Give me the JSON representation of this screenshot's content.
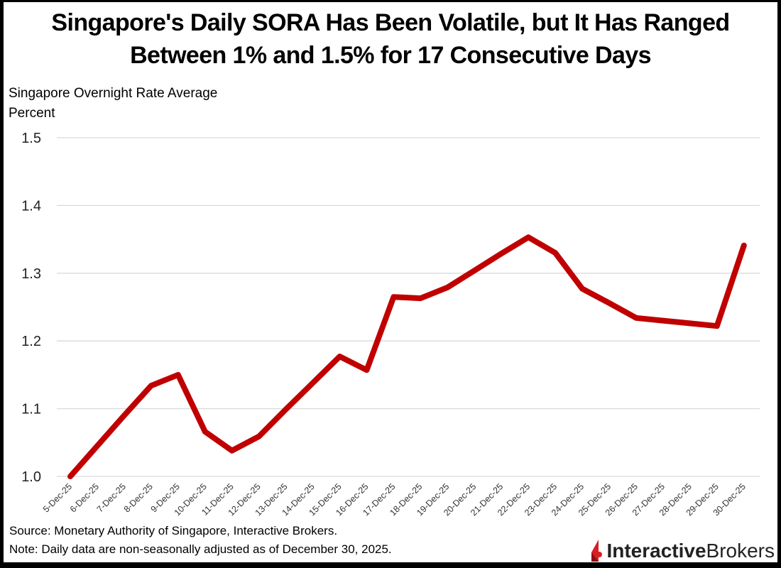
{
  "chart_data": {
    "type": "line",
    "title": "Singapore's Daily SORA Has Been Volatile, but It Has Ranged Between 1% and 1.5% for 17 Consecutive Days",
    "title_lines": [
      "Singapore's Daily SORA Has Been Volatile, but It Has Ranged",
      "Between 1% and 1.5% for 17 Consecutive Days"
    ],
    "ylabel_lines": [
      "Singapore Overnight Rate Average",
      "Percent"
    ],
    "xlabel": "",
    "ylim": [
      1.0,
      1.5
    ],
    "yticks": [
      1.0,
      1.1,
      1.2,
      1.3,
      1.4,
      1.5
    ],
    "ytick_labels": [
      "1.0",
      "1.1",
      "1.2",
      "1.3",
      "1.4",
      "1.5"
    ],
    "grid": true,
    "legend": "none",
    "categories": [
      "5-Dec-25",
      "6-Dec-25",
      "7-Dec-25",
      "8-Dec-25",
      "9-Dec-25",
      "10-Dec-25",
      "11-Dec-25",
      "12-Dec-25",
      "13-Dec-25",
      "14-Dec-25",
      "15-Dec-25",
      "16-Dec-25",
      "17-Dec-25",
      "18-Dec-25",
      "19-Dec-25",
      "20-Dec-25",
      "21-Dec-25",
      "22-Dec-25",
      "23-Dec-25",
      "24-Dec-25",
      "25-Dec-25",
      "26-Dec-25",
      "27-Dec-25",
      "28-Dec-25",
      "29-Dec-25",
      "30-Dec-25"
    ],
    "series": [
      {
        "name": "Singapore Overnight Rate Average",
        "color": "#c00000",
        "values": [
          1.0,
          1.045,
          1.09,
          1.134,
          1.15,
          1.066,
          1.038,
          1.059,
          1.099,
          1.138,
          1.177,
          1.157,
          1.265,
          1.263,
          1.279,
          1.304,
          1.329,
          1.353,
          1.33,
          1.277,
          1.256,
          1.234,
          1.23,
          1.226,
          1.222,
          1.341
        ]
      }
    ]
  },
  "footer": {
    "source": "Source: Monetary Authority of Singapore, Interactive Brokers.",
    "note": "Note: Daily data are non-seasonally adjusted as of December 30, 2025."
  },
  "logo": {
    "bold": "Interactive",
    "regular": "Brokers",
    "accent_color": "#d81f26"
  }
}
